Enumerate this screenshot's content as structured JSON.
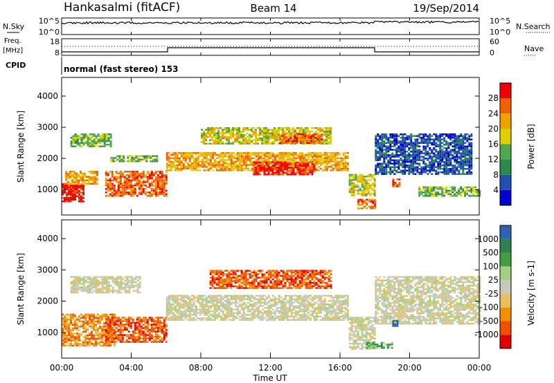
{
  "header": {
    "station": "Hankasalmi (fitACF)",
    "beam": "Beam 14",
    "date": "19/Sep/2014"
  },
  "aux": {
    "nsky_label": "N.Sky",
    "nsearch_label": "N.Search",
    "freq_label_1": "Freq.",
    "freq_label_2": "[MHz]",
    "nave_label": "Nave",
    "cpid_label": "CPID",
    "cpid_text": "normal (fast stereo) 153",
    "nsky_ticks": [
      "10^5",
      "10^0"
    ],
    "nsearch_ticks": [
      "10^5",
      "10^0"
    ],
    "freq_ticks": [
      "18",
      "8"
    ],
    "nave_ticks": [
      "60",
      "0"
    ]
  },
  "chart_data": [
    {
      "type": "heatmap",
      "panel": "power",
      "xlabel": "Time UT",
      "ylabel": "Slant Range [km]",
      "xticks": [
        "00:00",
        "04:00",
        "08:00",
        "12:00",
        "16:00",
        "20:00",
        "00:00"
      ],
      "x_hours": [
        0,
        24
      ],
      "ylim": [
        180,
        4600
      ],
      "yticks": [
        1000,
        2000,
        3000,
        4000
      ],
      "colorbar_label": "Power [dB]",
      "colorbar_ticks": [
        "28",
        "24",
        "20",
        "16",
        "12",
        "8",
        "4"
      ],
      "colorbar_colors": [
        "#0000d0",
        "#2050b0",
        "#2a8a4a",
        "#4ea84e",
        "#e0d000",
        "#f0a000",
        "#f06000",
        "#f00000"
      ],
      "bands": [
        {
          "t0": 0.0,
          "t1": 1.3,
          "r0": 600,
          "r1": 1200,
          "level": 7
        },
        {
          "t0": 0.2,
          "t1": 2.0,
          "r0": 1200,
          "r1": 1600,
          "level": 5
        },
        {
          "t0": 0.5,
          "t1": 2.8,
          "r0": 2400,
          "r1": 2800,
          "level": 3
        },
        {
          "t0": 2.5,
          "t1": 6.0,
          "r0": 800,
          "r1": 1600,
          "level": 6
        },
        {
          "t0": 2.8,
          "t1": 5.5,
          "r0": 1900,
          "r1": 2100,
          "level": 3
        },
        {
          "t0": 6.0,
          "t1": 16.5,
          "r0": 1600,
          "r1": 2200,
          "level": 5
        },
        {
          "t0": 11.0,
          "t1": 14.5,
          "r0": 1500,
          "r1": 1900,
          "level": 7
        },
        {
          "t0": 8.0,
          "t1": 15.5,
          "r0": 2500,
          "r1": 3000,
          "level": 4
        },
        {
          "t0": 12.5,
          "t1": 15.0,
          "r0": 2500,
          "r1": 2800,
          "level": 6
        },
        {
          "t0": 16.5,
          "t1": 18.0,
          "r0": 800,
          "r1": 1500,
          "level": 4
        },
        {
          "t0": 17.0,
          "t1": 18.0,
          "r0": 400,
          "r1": 700,
          "level": 6
        },
        {
          "t0": 18.0,
          "t1": 23.5,
          "r0": 1500,
          "r1": 2800,
          "level": 1
        },
        {
          "t0": 19.0,
          "t1": 19.4,
          "r0": 1100,
          "r1": 1350,
          "level": 6
        },
        {
          "t0": 20.5,
          "t1": 24.0,
          "r0": 800,
          "r1": 1100,
          "level": 3
        }
      ]
    },
    {
      "type": "heatmap",
      "panel": "velocity",
      "xlabel": "Time UT",
      "ylabel": "Slant Range [km]",
      "xticks": [
        "00:00",
        "04:00",
        "08:00",
        "12:00",
        "16:00",
        "20:00",
        "00:00"
      ],
      "x_hours": [
        0,
        24
      ],
      "ylim": [
        180,
        4600
      ],
      "yticks": [
        1000,
        2000,
        3000,
        4000
      ],
      "colorbar_label": "Velocity [m s-1]",
      "colorbar_ticks": [
        "1000",
        "500",
        "100",
        "25",
        "-25",
        "-100",
        "-500",
        "-1000"
      ],
      "colorbar_colors": [
        "#e00000",
        "#f05000",
        "#f09000",
        "#e8c060",
        "#c8c8c0",
        "#a0d080",
        "#40a040",
        "#308050",
        "#3060b0"
      ],
      "bands": [
        {
          "t0": 0.0,
          "t1": 3.0,
          "r0": 600,
          "r1": 1600,
          "level": 2
        },
        {
          "t0": 2.5,
          "t1": 6.0,
          "r0": 700,
          "r1": 1500,
          "level": 1
        },
        {
          "t0": 0.5,
          "t1": 4.5,
          "r0": 2300,
          "r1": 2800,
          "level": 4
        },
        {
          "t0": 6.0,
          "t1": 16.5,
          "r0": 1400,
          "r1": 2200,
          "level": 4
        },
        {
          "t0": 8.5,
          "t1": 15.5,
          "r0": 2400,
          "r1": 3000,
          "level": 1
        },
        {
          "t0": 16.5,
          "t1": 18.0,
          "r0": 500,
          "r1": 1500,
          "level": 4
        },
        {
          "t0": 18.0,
          "t1": 24.0,
          "r0": 1300,
          "r1": 2800,
          "level": 4
        },
        {
          "t0": 17.5,
          "t1": 19.0,
          "r0": 500,
          "r1": 700,
          "level": 6
        },
        {
          "t0": 19.0,
          "t1": 19.3,
          "r0": 1200,
          "r1": 1400,
          "level": 8
        }
      ]
    }
  ],
  "colors": {
    "frame": "#000000",
    "background": "#ffffff"
  }
}
